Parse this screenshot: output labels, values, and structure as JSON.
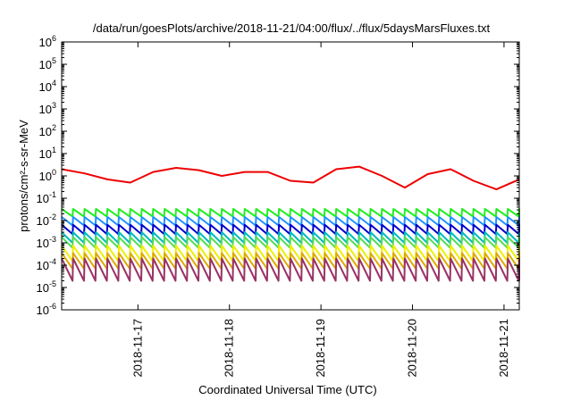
{
  "chart_data": {
    "type": "line",
    "title": "/data/run/goesPlots/archive/2018-11-21/04:00/flux/../flux/5daysMarsFluxes.txt",
    "xlabel": "Coordinated Universal Time (UTC)",
    "ylabel": "protons/cm²-s-sr-MeV",
    "yscale": "log",
    "ylim": [
      1e-06,
      1000000.0
    ],
    "xlim": [
      "2018-11-16T04:00",
      "2018-11-21T04:00"
    ],
    "y_ticks": [
      {
        "base": "10",
        "exp": "-6",
        "value": 1e-06
      },
      {
        "base": "10",
        "exp": "-5",
        "value": 1e-05
      },
      {
        "base": "10",
        "exp": "-4",
        "value": 0.0001
      },
      {
        "base": "10",
        "exp": "-3",
        "value": 0.001
      },
      {
        "base": "10",
        "exp": "-2",
        "value": 0.01
      },
      {
        "base": "10",
        "exp": "-1",
        "value": 0.1
      },
      {
        "base": "10",
        "exp": "0",
        "value": 1
      },
      {
        "base": "10",
        "exp": "1",
        "value": 10
      },
      {
        "base": "10",
        "exp": "2",
        "value": 100
      },
      {
        "base": "10",
        "exp": "3",
        "value": 1000
      },
      {
        "base": "10",
        "exp": "4",
        "value": 10000
      },
      {
        "base": "10",
        "exp": "5",
        "value": 100000
      },
      {
        "base": "10",
        "exp": "6",
        "value": 1000000
      }
    ],
    "x_ticks": [
      {
        "label": "2018-11-17",
        "value": "2018-11-17T00:00"
      },
      {
        "label": "2018-11-18",
        "value": "2018-11-18T00:00"
      },
      {
        "label": "2018-11-19",
        "value": "2018-11-19T00:00"
      },
      {
        "label": "2018-11-20",
        "value": "2018-11-20T00:00"
      },
      {
        "label": "2018-11-21",
        "value": "2018-11-21T00:00"
      }
    ],
    "grid": false,
    "legend": "none",
    "series": [
      {
        "color": "#ee0000",
        "x": [
          "2018-11-16T04:00",
          "2018-11-16T10:00",
          "2018-11-16T16:00",
          "2018-11-16T22:00",
          "2018-11-17T04:00",
          "2018-11-17T10:00",
          "2018-11-17T16:00",
          "2018-11-17T22:00",
          "2018-11-18T04:00",
          "2018-11-18T10:00",
          "2018-11-18T16:00",
          "2018-11-18T22:00",
          "2018-11-19T04:00",
          "2018-11-19T10:00",
          "2018-11-19T16:00",
          "2018-11-19T22:00",
          "2018-11-20T04:00",
          "2018-11-20T10:00",
          "2018-11-20T16:00",
          "2018-11-20T22:00",
          "2018-11-21T04:00"
        ],
        "values": [
          2.0,
          1.3,
          0.7,
          0.5,
          1.5,
          2.3,
          1.8,
          1.0,
          1.5,
          1.5,
          0.6,
          0.5,
          2.0,
          2.6,
          1.0,
          0.3,
          1.2,
          2.0,
          0.6,
          0.25,
          0.7
        ]
      },
      {
        "color": "#22ee22",
        "base": 0.015,
        "amplitude_ratio": 2.2,
        "period_hours": 3,
        "x_start": "2018-11-16T04:00",
        "x_end": "2018-11-21T04:00"
      },
      {
        "color": "#1e90ff",
        "base": 0.006,
        "amplitude_ratio": 2.4,
        "period_hours": 3,
        "x_start": "2018-11-16T04:00",
        "x_end": "2018-11-21T04:00"
      },
      {
        "color": "#0000cc",
        "base": 0.0025,
        "amplitude_ratio": 2.6,
        "period_hours": 3,
        "x_start": "2018-11-16T04:00",
        "x_end": "2018-11-21T04:00"
      },
      {
        "color": "#00bbbb",
        "base": 0.001,
        "amplitude_ratio": 3.0,
        "period_hours": 3,
        "x_start": "2018-11-16T04:00",
        "x_end": "2018-11-21T04:00"
      },
      {
        "color": "#55dd55",
        "base": 0.0006,
        "amplitude_ratio": 3.0,
        "period_hours": 3,
        "x_start": "2018-11-16T04:00",
        "x_end": "2018-11-21T04:00"
      },
      {
        "color": "#eeee00",
        "base": 0.00015,
        "amplitude_ratio": 5.0,
        "period_hours": 3,
        "x_start": "2018-11-16T04:00",
        "x_end": "2018-11-21T04:00"
      },
      {
        "color": "#ddaa00",
        "base": 7e-05,
        "amplitude_ratio": 5.0,
        "period_hours": 3,
        "x_start": "2018-11-16T04:00",
        "x_end": "2018-11-21T04:00"
      },
      {
        "color": "#993366",
        "base": 2e-05,
        "amplitude_ratio": 10.0,
        "period_hours": 3,
        "x_start": "2018-11-16T04:00",
        "x_end": "2018-11-21T04:00"
      }
    ]
  }
}
